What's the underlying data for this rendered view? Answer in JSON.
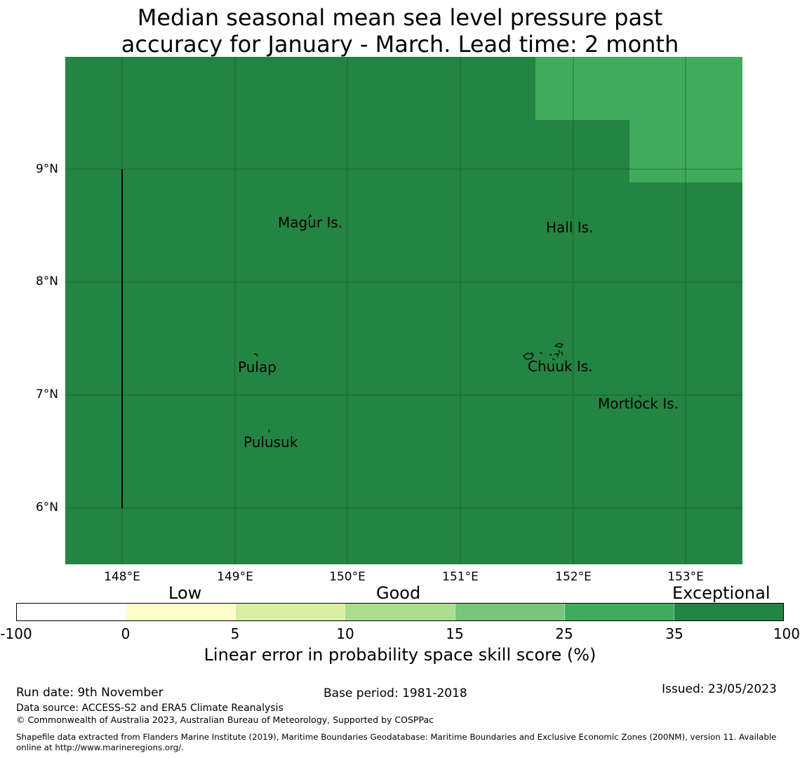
{
  "title": {
    "line1": "Median seasonal mean sea level pressure past",
    "line2": "accuracy for January - March. Lead time: 2 month"
  },
  "map": {
    "background_color": "#238443",
    "lon_ticks": [
      "148°E",
      "149°E",
      "150°E",
      "151°E",
      "152°E",
      "153°E"
    ],
    "lat_ticks": [
      "9°N",
      "8°N",
      "7°N",
      "6°N"
    ],
    "places": [
      {
        "name": "Magur Is."
      },
      {
        "name": "Hall Is."
      },
      {
        "name": "Pulap"
      },
      {
        "name": "Chuuk Is."
      },
      {
        "name": "Mortlock Is."
      },
      {
        "name": "Pulusuk"
      }
    ],
    "regions": [
      {
        "category": "Exceptional",
        "color": "#238443"
      },
      {
        "category": "Good (25-35)",
        "color": "#41ab5d"
      }
    ]
  },
  "legend": {
    "categories": [
      "Low",
      "Good",
      "Exceptional"
    ],
    "ticks": [
      "-100",
      "0",
      "5",
      "10",
      "15",
      "25",
      "35",
      "100"
    ],
    "colors": [
      "#ffffff",
      "#ffffcc",
      "#d9f0a3",
      "#addd8e",
      "#78c679",
      "#41ab5d",
      "#238443"
    ],
    "label": "Linear error in probability space skill score (%)"
  },
  "footer": {
    "run_date": "Run date: 9th November",
    "base_period": "Base period: 1981-2018",
    "issued": "Issued: 23/05/2023",
    "data_source": "Data source: ACCESS-S2 and ERA5 Climate Reanalysis",
    "copyright": "© Commonwealth of Australia 2023, Australian Bureau of Meteorology, Supported by COSPPac",
    "shapefile_line1": "Shapefile data extracted from Flanders Marine Institute (2019), Maritime Boundaries Geodatabase: Maritime Boundaries and Exclusive Economic Zones (200NM), version 11. Available",
    "shapefile_line2": "online at http://www.marineregions.org/."
  }
}
